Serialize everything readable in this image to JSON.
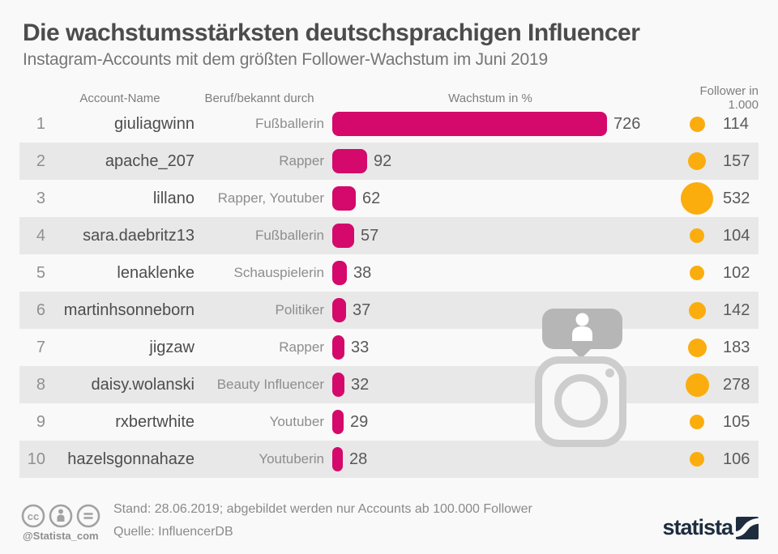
{
  "header": {
    "title": "Die wachstumsstärksten deutschsprachigen Influencer",
    "subtitle": "Instagram-Accounts mit dem größten Follower-Wachstum im Juni 2019"
  },
  "table": {
    "columns": {
      "account": "Account-Name",
      "beruf": "Beruf/bekannt durch",
      "growth": "Wachstum in %",
      "followers": "Follower in 1.000"
    },
    "rows": [
      {
        "rank": 1,
        "account": "giuliagwinn",
        "beruf": "Fußballerin",
        "growth": 726,
        "followers": 114
      },
      {
        "rank": 2,
        "account": "apache_207",
        "beruf": "Rapper",
        "growth": 92,
        "followers": 157
      },
      {
        "rank": 3,
        "account": "lillano",
        "beruf": "Rapper, Youtuber",
        "growth": 62,
        "followers": 532
      },
      {
        "rank": 4,
        "account": "sara.daebritz13",
        "beruf": "Fußballerin",
        "growth": 57,
        "followers": 104
      },
      {
        "rank": 5,
        "account": "lenaklenke",
        "beruf": "Schauspielerin",
        "growth": 38,
        "followers": 102
      },
      {
        "rank": 6,
        "account": "martinhsonneborn",
        "beruf": "Politiker",
        "growth": 37,
        "followers": 142
      },
      {
        "rank": 7,
        "account": "jigzaw",
        "beruf": "Rapper",
        "growth": 33,
        "followers": 183
      },
      {
        "rank": 8,
        "account": "daisy.wolanski",
        "beruf": "Beauty Influencer",
        "growth": 32,
        "followers": 278
      },
      {
        "rank": 9,
        "account": "rxbertwhite",
        "beruf": "Youtuber",
        "growth": 29,
        "followers": 105
      },
      {
        "rank": 10,
        "account": "hazelsgonnahaze",
        "beruf": "Youtuberin",
        "growth": 28,
        "followers": 106
      }
    ]
  },
  "chart_data": {
    "type": "bar",
    "title": "Die wachstumsstärksten deutschsprachigen Influencer",
    "subtitle": "Instagram-Accounts mit dem größten Follower-Wachstum im Juni 2019",
    "categories": [
      "giuliagwinn",
      "apache_207",
      "lillano",
      "sara.daebritz13",
      "lenaklenke",
      "martinhsonneborn",
      "jigzaw",
      "daisy.wolanski",
      "rxbertwhite",
      "hazelsgonnahaze"
    ],
    "professions": [
      "Fußballerin",
      "Rapper",
      "Rapper, Youtuber",
      "Fußballerin",
      "Schauspielerin",
      "Politiker",
      "Rapper",
      "Beauty Influencer",
      "Youtuber",
      "Youtuberin"
    ],
    "series": [
      {
        "name": "Wachstum in %",
        "values": [
          726,
          92,
          62,
          57,
          38,
          37,
          33,
          32,
          29,
          28
        ]
      },
      {
        "name": "Follower in 1.000",
        "values": [
          114,
          157,
          532,
          104,
          102,
          142,
          183,
          278,
          105,
          106
        ]
      }
    ],
    "orientation": "horizontal",
    "xlim": [
      0,
      726
    ],
    "grid": false,
    "data_labels": true
  },
  "footer": {
    "handle": "@Statista_com",
    "stand": "Stand: 28.06.2019; abgebildet werden nur Accounts ab 100.000 Follower",
    "quelle": "Quelle: InfluencerDB",
    "brand": "statista"
  },
  "colors": {
    "bar": "#d4096b",
    "dot": "#fbad0e",
    "row_stripe": "#e8e8e8",
    "brand_navy": "#1d2d3f",
    "watermark_gray": "#cdcdcd"
  }
}
